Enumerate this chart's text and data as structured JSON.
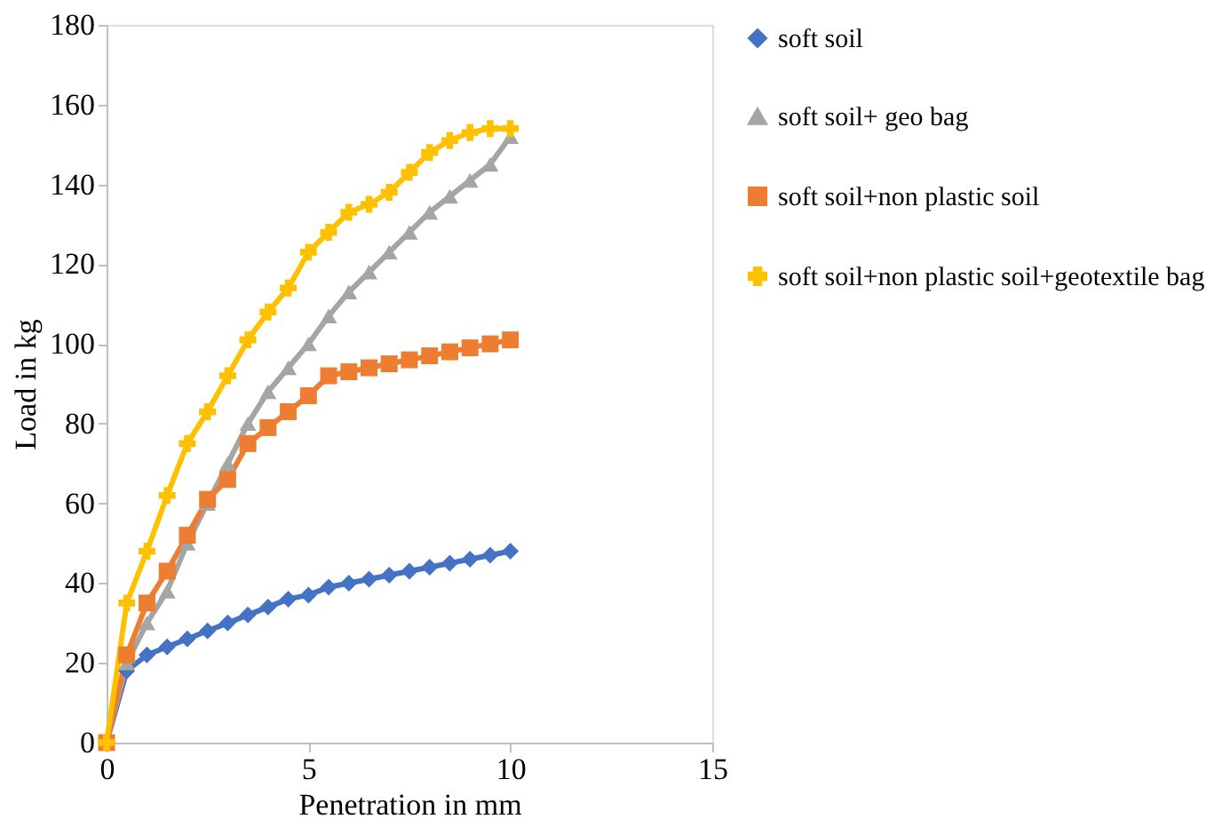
{
  "chart_data": {
    "type": "line",
    "xlabel": "Penetration in mm",
    "ylabel": "Load in kg",
    "x": [
      0,
      0.5,
      1,
      1.5,
      2,
      2.5,
      3,
      3.5,
      4,
      4.5,
      5,
      5.5,
      6,
      6.5,
      7,
      7.5,
      8,
      8.5,
      9,
      9.5,
      10
    ],
    "series": [
      {
        "name": "soft soil",
        "color": "#4472c4",
        "marker": "diamond",
        "values": [
          0,
          18,
          22,
          24,
          26,
          28,
          30,
          32,
          34,
          36,
          37,
          39,
          40,
          41,
          42,
          43,
          44,
          45,
          46,
          47,
          48
        ]
      },
      {
        "name": "soft soil+ geo bag",
        "color": "#a5a5a5",
        "marker": "triangle",
        "values": [
          0,
          20,
          30,
          38,
          50,
          60,
          70,
          80,
          88,
          94,
          100,
          107,
          113,
          118,
          123,
          128,
          133,
          137,
          141,
          145,
          152
        ]
      },
      {
        "name": "soft soil+non plastic soil",
        "color": "#ed7d31",
        "marker": "square",
        "values": [
          0,
          22,
          35,
          43,
          52,
          61,
          66,
          75,
          79,
          83,
          87,
          92,
          93,
          94,
          95,
          96,
          97,
          98,
          99,
          100,
          101
        ]
      },
      {
        "name": "soft soil+non plastic soil+geotextile bag",
        "color": "#ffc000",
        "marker": "cross",
        "values": [
          0,
          35,
          48,
          62,
          75,
          83,
          92,
          101,
          108,
          114,
          123,
          128,
          133,
          135,
          138,
          143,
          148,
          151,
          153,
          154,
          154
        ]
      }
    ],
    "xlim": [
      0,
      15
    ],
    "xticks": [
      0,
      5,
      10,
      15
    ],
    "ylim": [
      0,
      180
    ],
    "yticks": [
      0,
      20,
      40,
      60,
      80,
      100,
      120,
      140,
      160,
      180
    ],
    "grid": false,
    "legend": "right",
    "line_style": "solid"
  }
}
